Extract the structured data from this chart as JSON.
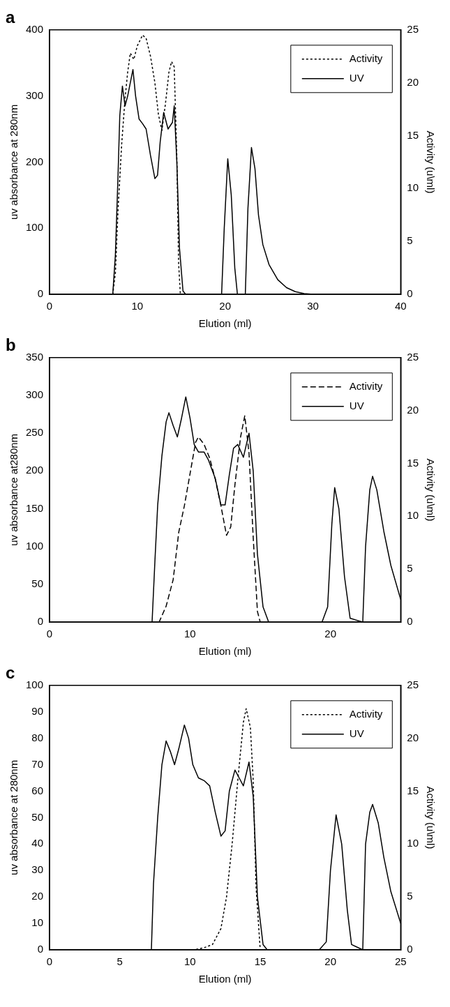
{
  "chart_data": [
    {
      "type": "line",
      "title": "a",
      "xlabel": "Elution (ml)",
      "ylabel": "uv absorbance at 280nm",
      "y2label": "Activity (u\\ml)",
      "xlim": [
        0,
        40
      ],
      "xticks": [
        0,
        10,
        20,
        30,
        40
      ],
      "ylim": [
        0,
        400
      ],
      "yticks": [
        0,
        100,
        200,
        300,
        400
      ],
      "y2lim": [
        0,
        25
      ],
      "y2ticks": [
        0,
        5,
        10,
        15,
        20,
        25
      ],
      "grid": false,
      "legend": "top right",
      "marker": "none",
      "series": [
        {
          "name": "Activity",
          "color": "#000000",
          "axis": "y2",
          "line_style": "dotted",
          "x": [
            0,
            7.2,
            7.5,
            7.8,
            8.2,
            8.6,
            8.9,
            9.2,
            9.6,
            10.0,
            10.6,
            11.0,
            11.5,
            12.0,
            12.4,
            12.8,
            13.2,
            13.6,
            13.9,
            14.2,
            14.5,
            14.7,
            14.9
          ],
          "values": [
            0,
            0,
            2,
            8,
            14,
            18.5,
            21,
            22.8,
            22.2,
            23.5,
            24.5,
            24.2,
            22.5,
            20,
            17,
            15.5,
            18,
            21,
            22,
            21.5,
            13,
            3,
            0
          ]
        },
        {
          "name": "UV",
          "color": "#000000",
          "axis": "y",
          "line_style": "solid",
          "x": [
            0,
            7.2,
            7.5,
            7.8,
            8.0,
            8.3,
            8.6,
            8.9,
            9.2,
            9.5,
            9.8,
            10.2,
            10.6,
            11.0,
            11.5,
            12.0,
            12.3,
            12.6,
            13.0,
            13.5,
            14.0,
            14.2,
            14.5,
            14.8,
            15.2,
            15.5,
            19.6,
            19.9,
            20.3,
            20.7,
            21.1,
            21.4,
            22.3,
            22.6,
            23.0,
            23.4,
            23.8,
            24.3,
            25,
            26,
            27,
            28,
            29,
            30
          ],
          "values": [
            0,
            0,
            60,
            180,
            270,
            315,
            285,
            300,
            320,
            340,
            300,
            265,
            258,
            250,
            210,
            175,
            180,
            230,
            275,
            250,
            260,
            285,
            200,
            70,
            5,
            0,
            0,
            100,
            205,
            150,
            40,
            0,
            0,
            130,
            222,
            190,
            120,
            75,
            45,
            22,
            10,
            4,
            1,
            0
          ]
        }
      ]
    },
    {
      "type": "line",
      "title": "b",
      "xlabel": "Elution (ml)",
      "ylabel": "uv absorbance at280nm",
      "y2label": "Activity (u\\ml)",
      "xlim": [
        0,
        25
      ],
      "xticks": [
        0,
        10,
        20
      ],
      "ylim": [
        0,
        350
      ],
      "yticks": [
        0,
        50,
        100,
        150,
        200,
        250,
        300,
        350
      ],
      "y2lim": [
        0,
        25
      ],
      "y2ticks": [
        0,
        5,
        10,
        15,
        20,
        25
      ],
      "grid": false,
      "legend": "top right",
      "marker": "none",
      "series": [
        {
          "name": "Activity",
          "color": "#000000",
          "axis": "y2",
          "line_style": "dashed",
          "x": [
            0,
            7.8,
            8.3,
            8.8,
            9.2,
            9.6,
            10.0,
            10.4,
            10.6,
            11.0,
            11.4,
            11.8,
            12.2,
            12.6,
            12.9,
            13.2,
            13.6,
            13.9,
            14.2,
            14.5,
            14.8,
            15.0
          ],
          "values": [
            0,
            0,
            1.5,
            4,
            8.5,
            11,
            14,
            17,
            17.5,
            16.8,
            15.5,
            13.5,
            11,
            8.2,
            9,
            13,
            17.5,
            19.5,
            16,
            8,
            1,
            0
          ]
        },
        {
          "name": "UV",
          "color": "#000000",
          "axis": "y",
          "line_style": "solid",
          "x": [
            0,
            7.3,
            7.5,
            7.7,
            8.0,
            8.3,
            8.5,
            8.8,
            9.1,
            9.4,
            9.7,
            10.0,
            10.3,
            10.6,
            11.0,
            11.3,
            11.8,
            12.2,
            12.5,
            12.8,
            13.1,
            13.4,
            13.8,
            14.2,
            14.5,
            14.8,
            15.2,
            15.6,
            19.4,
            19.8,
            20.1,
            20.3,
            20.6,
            21.0,
            21.4,
            22.3,
            22.5,
            22.8,
            23.0,
            23.3,
            23.8,
            24.3,
            25
          ],
          "values": [
            0,
            0,
            80,
            155,
            220,
            265,
            277,
            260,
            245,
            270,
            298,
            270,
            235,
            225,
            225,
            215,
            190,
            155,
            155,
            195,
            230,
            235,
            218,
            250,
            200,
            90,
            20,
            0,
            0,
            20,
            130,
            178,
            150,
            60,
            5,
            0,
            100,
            175,
            193,
            175,
            120,
            75,
            30
          ]
        }
      ]
    },
    {
      "type": "line",
      "title": "c",
      "xlabel": "Elution (ml)",
      "ylabel": "uv absorbance at 280nm",
      "y2label": "Activity (u\\ml)",
      "xlim": [
        0,
        25
      ],
      "xticks": [
        0,
        5,
        10,
        15,
        20,
        25
      ],
      "ylim": [
        0,
        100
      ],
      "yticks": [
        0,
        10,
        20,
        30,
        40,
        50,
        60,
        70,
        80,
        90,
        100
      ],
      "y2lim": [
        0,
        25
      ],
      "y2ticks": [
        0,
        5,
        10,
        15,
        20,
        25
      ],
      "grid": false,
      "legend": "top right",
      "marker": "none",
      "series": [
        {
          "name": "Activity",
          "color": "#000000",
          "axis": "y2",
          "line_style": "dotted",
          "x": [
            0,
            10.3,
            11.0,
            11.6,
            12.2,
            12.6,
            13.0,
            13.4,
            13.8,
            14.0,
            14.3,
            14.5,
            14.7,
            15.0
          ],
          "values": [
            0,
            0,
            0.2,
            0.5,
            2,
            5,
            10,
            16,
            21.5,
            22.8,
            21,
            16,
            6,
            0
          ]
        },
        {
          "name": "UV",
          "color": "#000000",
          "axis": "y",
          "line_style": "solid",
          "x": [
            0,
            7.25,
            7.4,
            7.7,
            8.0,
            8.3,
            8.6,
            8.9,
            9.2,
            9.6,
            9.9,
            10.2,
            10.6,
            11.0,
            11.4,
            11.8,
            12.2,
            12.5,
            12.8,
            13.2,
            13.5,
            13.8,
            14.2,
            14.5,
            14.8,
            15.2,
            15.5,
            19.2,
            19.7,
            20.0,
            20.4,
            20.8,
            21.2,
            21.5,
            22.3,
            22.5,
            22.8,
            23.0,
            23.4,
            23.8,
            24.3,
            25
          ],
          "values": [
            0,
            0,
            25,
            50,
            70,
            79,
            75,
            70,
            76,
            85,
            80,
            70,
            65,
            64,
            62,
            52,
            43,
            45,
            60,
            68,
            65,
            62,
            71,
            58,
            20,
            2,
            0,
            0,
            3,
            30,
            51,
            40,
            15,
            2,
            0,
            40,
            52,
            55,
            48,
            35,
            22,
            10
          ]
        }
      ]
    }
  ]
}
